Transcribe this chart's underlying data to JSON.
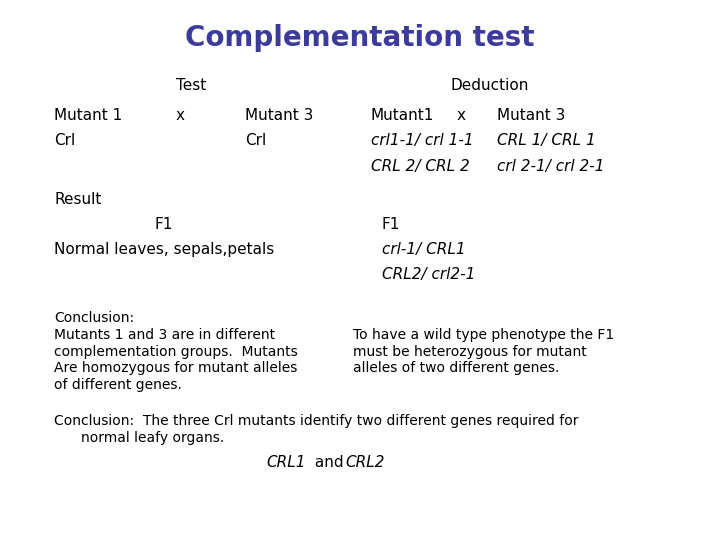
{
  "title": "Complementation test",
  "title_color": "#3b3b9e",
  "title_fontsize": 20,
  "bg_color": "#ffffff",
  "text_color": "#000000",
  "fig_width": 7.2,
  "fig_height": 5.4,
  "dpi": 100,
  "fs_body": 11,
  "fs_small": 10
}
